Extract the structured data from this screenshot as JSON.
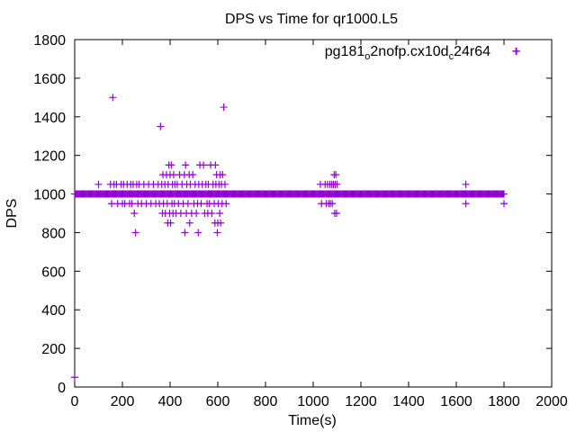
{
  "chart_data": {
    "type": "scatter",
    "title": "DPS vs Time for qr1000.L5",
    "xlabel": "Time(s)",
    "ylabel": "DPS",
    "xlim": [
      0,
      2000
    ],
    "ylim": [
      0,
      1800
    ],
    "xticks": [
      0,
      200,
      400,
      600,
      800,
      1000,
      1200,
      1400,
      1600,
      1800,
      2000
    ],
    "yticks": [
      0,
      200,
      400,
      600,
      800,
      1000,
      1200,
      1400,
      1600,
      1800
    ],
    "xtick_labels": [
      "0",
      "200",
      "400",
      "600",
      "800",
      "1000",
      "1200",
      "1400",
      "1600",
      "1800",
      "2000"
    ],
    "ytick_labels": [
      "0",
      "200",
      "400",
      "600",
      "800",
      "1000",
      "1200",
      "1400",
      "1600",
      "1800"
    ],
    "grid": false,
    "legend_position": "top-right",
    "marker": "plus",
    "color": "#9400d3",
    "series": [
      {
        "name_parts": [
          "pg181",
          "o",
          "2nofp.cx10d",
          "c",
          "24r64"
        ],
        "baseline": {
          "y": 1000,
          "x_start": 0,
          "x_end": 1800,
          "step": 4
        },
        "points": [
          [
            0,
            50
          ],
          [
            100,
            1050
          ],
          [
            150,
            1050
          ],
          [
            155,
            950
          ],
          [
            160,
            1500
          ],
          [
            165,
            1050
          ],
          [
            175,
            1050
          ],
          [
            180,
            950
          ],
          [
            195,
            1050
          ],
          [
            200,
            950
          ],
          [
            205,
            1050
          ],
          [
            210,
            950
          ],
          [
            220,
            1050
          ],
          [
            230,
            950
          ],
          [
            235,
            1050
          ],
          [
            240,
            950
          ],
          [
            245,
            1050
          ],
          [
            250,
            900
          ],
          [
            255,
            800
          ],
          [
            260,
            1050
          ],
          [
            265,
            950
          ],
          [
            270,
            1050
          ],
          [
            280,
            950
          ],
          [
            290,
            1050
          ],
          [
            300,
            950
          ],
          [
            310,
            1050
          ],
          [
            320,
            950
          ],
          [
            330,
            1050
          ],
          [
            340,
            950
          ],
          [
            350,
            1050
          ],
          [
            355,
            950
          ],
          [
            360,
            1350
          ],
          [
            365,
            1050
          ],
          [
            368,
            900
          ],
          [
            370,
            1100
          ],
          [
            372,
            950
          ],
          [
            378,
            1050
          ],
          [
            380,
            900
          ],
          [
            385,
            1100
          ],
          [
            388,
            950
          ],
          [
            390,
            850
          ],
          [
            392,
            1050
          ],
          [
            395,
            1150
          ],
          [
            398,
            900
          ],
          [
            400,
            1100
          ],
          [
            402,
            850
          ],
          [
            405,
            1150
          ],
          [
            408,
            950
          ],
          [
            410,
            1050
          ],
          [
            412,
            900
          ],
          [
            415,
            1100
          ],
          [
            418,
            950
          ],
          [
            420,
            1050
          ],
          [
            425,
            900
          ],
          [
            430,
            1050
          ],
          [
            435,
            950
          ],
          [
            440,
            1100
          ],
          [
            445,
            900
          ],
          [
            450,
            1050
          ],
          [
            455,
            950
          ],
          [
            460,
            1100
          ],
          [
            462,
            800
          ],
          [
            465,
            1150
          ],
          [
            468,
            900
          ],
          [
            470,
            1050
          ],
          [
            475,
            950
          ],
          [
            480,
            1100
          ],
          [
            482,
            850
          ],
          [
            485,
            1050
          ],
          [
            490,
            900
          ],
          [
            495,
            1100
          ],
          [
            500,
            950
          ],
          [
            505,
            1050
          ],
          [
            510,
            900
          ],
          [
            515,
            950
          ],
          [
            518,
            800
          ],
          [
            520,
            1050
          ],
          [
            525,
            1150
          ],
          [
            530,
            950
          ],
          [
            535,
            1050
          ],
          [
            540,
            1150
          ],
          [
            545,
            900
          ],
          [
            550,
            1050
          ],
          [
            555,
            950
          ],
          [
            558,
            900
          ],
          [
            560,
            1050
          ],
          [
            565,
            950
          ],
          [
            570,
            1150
          ],
          [
            575,
            900
          ],
          [
            580,
            1050
          ],
          [
            585,
            950
          ],
          [
            588,
            850
          ],
          [
            590,
            1150
          ],
          [
            592,
            1050
          ],
          [
            595,
            1100
          ],
          [
            598,
            800
          ],
          [
            600,
            850
          ],
          [
            602,
            950
          ],
          [
            605,
            1050
          ],
          [
            608,
            900
          ],
          [
            610,
            1100
          ],
          [
            612,
            850
          ],
          [
            615,
            1050
          ],
          [
            618,
            950
          ],
          [
            620,
            1100
          ],
          [
            625,
            1450
          ],
          [
            630,
            1050
          ],
          [
            635,
            950
          ],
          [
            1030,
            1050
          ],
          [
            1035,
            950
          ],
          [
            1050,
            1050
          ],
          [
            1055,
            950
          ],
          [
            1060,
            1050
          ],
          [
            1065,
            950
          ],
          [
            1070,
            1050
          ],
          [
            1072,
            950
          ],
          [
            1078,
            1050
          ],
          [
            1080,
            950
          ],
          [
            1085,
            1050
          ],
          [
            1088,
            1100
          ],
          [
            1090,
            900
          ],
          [
            1092,
            1050
          ],
          [
            1095,
            1100
          ],
          [
            1098,
            900
          ],
          [
            1100,
            1050
          ],
          [
            1640,
            1050
          ],
          [
            1640,
            950
          ],
          [
            1800,
            950
          ],
          [
            1850,
            1740
          ]
        ]
      }
    ]
  }
}
